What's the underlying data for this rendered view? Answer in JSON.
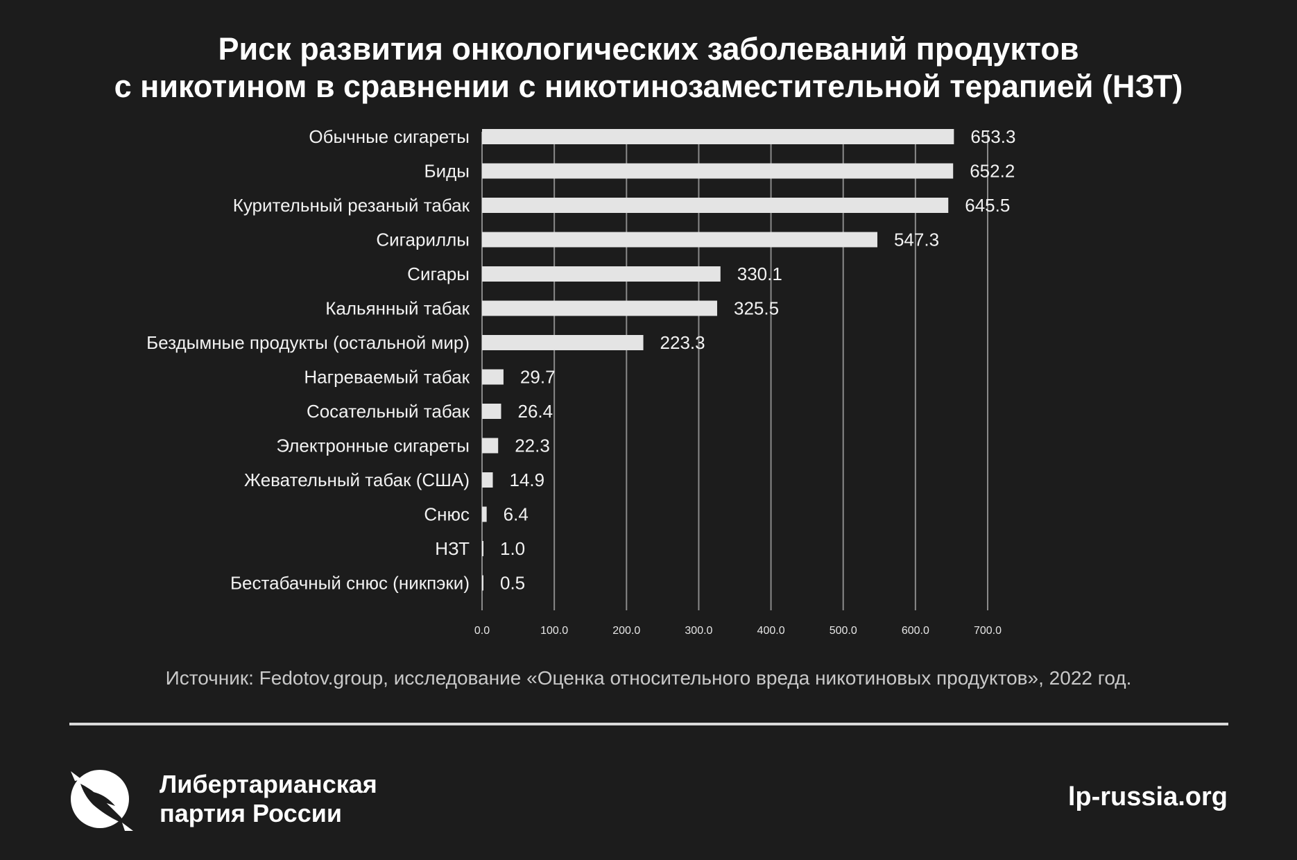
{
  "header": {
    "title_line1": "Риск развития онкологических заболеваний продуктов",
    "title_line2": "с никотином в сравнении с никотинозаместительной терапией (НЗТ)"
  },
  "chart_data": {
    "type": "bar",
    "orientation": "horizontal",
    "title": "Риск развития онкологических заболеваний продуктов с никотином в сравнении с никотинозаместительной терапией (НЗТ)",
    "categories": [
      "Обычные сигареты",
      "Биды",
      "Курительный резаный табак",
      "Сигариллы",
      "Сигары",
      "Кальянный табак",
      "Бездымные продукты (остальной мир)",
      "Нагреваемый табак",
      "Сосательный табак",
      "Электронные сигареты",
      "Жевательный табак (США)",
      "Снюс",
      "НЗТ",
      "Бестабачный снюс (никпэки)"
    ],
    "values": [
      653.3,
      652.2,
      645.5,
      547.3,
      330.1,
      325.5,
      223.3,
      29.7,
      26.4,
      22.3,
      14.9,
      6.4,
      1.0,
      0.5
    ],
    "value_labels": [
      "653.3",
      "652.2",
      "645.5",
      "547.3",
      "330.1",
      "325.5",
      "223.3",
      "29.7",
      "26.4",
      "22.3",
      "14.9",
      "6.4",
      "1.0",
      "0.5"
    ],
    "xlim": [
      0,
      700
    ],
    "xticks": [
      0,
      100,
      200,
      300,
      400,
      500,
      600,
      700
    ],
    "xtick_labels": [
      "0.0",
      "100.0",
      "200.0",
      "300.0",
      "400.0",
      "500.0",
      "600.0",
      "700.0"
    ],
    "xlabel": "",
    "ylabel": "",
    "grid": true,
    "bar_color": "#e4e4e4",
    "grid_color": "#8a8a8a"
  },
  "footer": {
    "source": "Источник: Fedotov.group, исследование «Оценка относительного вреда никотиновых продуктов», 2022 год.",
    "org_line1": "Либертарианская",
    "org_line2": "партия России",
    "site": "lp-russia.org",
    "logo_icon": "eagle-circle-logo-icon"
  }
}
